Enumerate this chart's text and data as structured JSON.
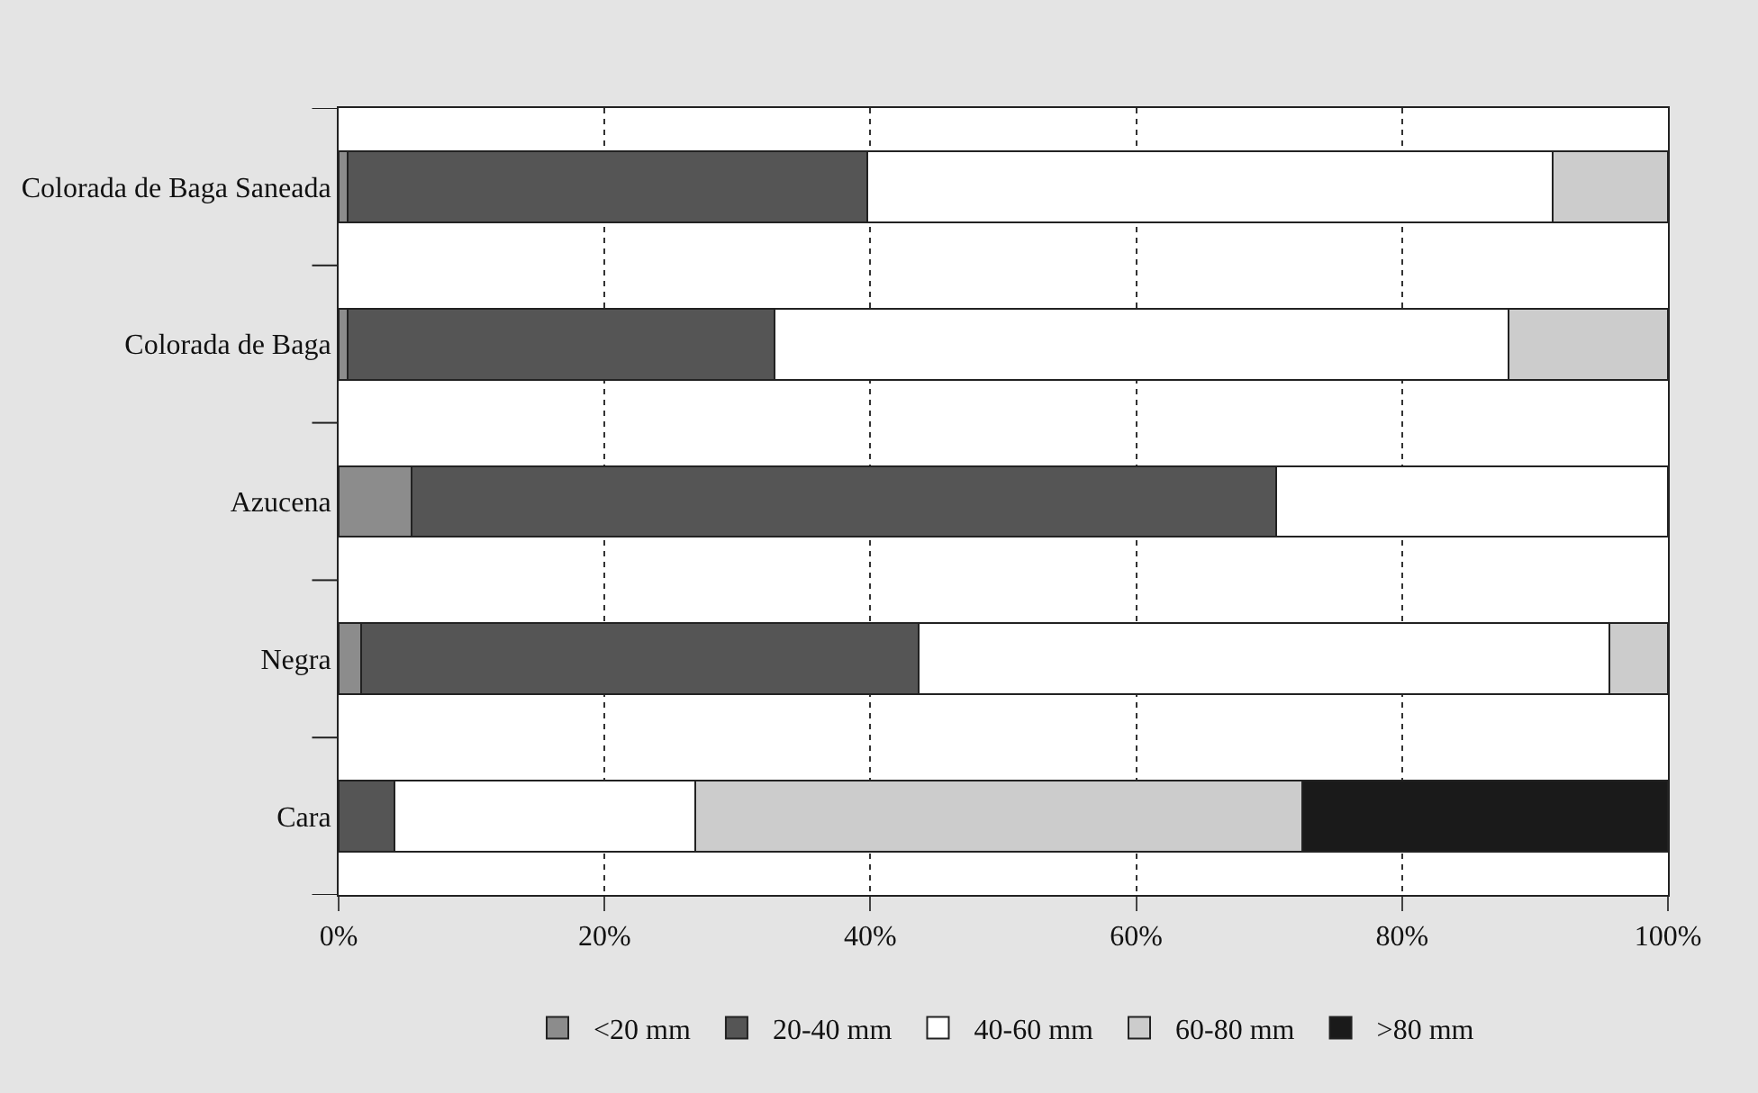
{
  "chart_data": {
    "type": "bar",
    "orientation": "horizontal",
    "stacked": true,
    "categories": [
      "Colorada de Baga Saneada",
      "Colorada de Baga",
      "Azucena",
      "Negra",
      "Cara"
    ],
    "series": [
      {
        "name": "<20 mm",
        "color": "#8c8c8c",
        "values": [
          0.7,
          0.7,
          5.5,
          1.7,
          0
        ]
      },
      {
        "name": "20-40 mm",
        "color": "#555555",
        "values": [
          39.1,
          32.1,
          65.0,
          41.9,
          4.2
        ]
      },
      {
        "name": "40-60 mm",
        "color": "#ffffff",
        "values": [
          51.5,
          55.2,
          29.5,
          52.0,
          22.6
        ]
      },
      {
        "name": "60-80 mm",
        "color": "#cccccc",
        "values": [
          8.7,
          12.0,
          0,
          4.4,
          45.7
        ]
      },
      {
        "name": ">80 mm",
        "color": "#1a1a1a",
        "values": [
          0,
          0,
          0,
          0,
          27.5
        ]
      }
    ],
    "xlim": [
      0,
      100
    ],
    "xticks": [
      {
        "value": 0,
        "label": "0%"
      },
      {
        "value": 20,
        "label": "20%"
      },
      {
        "value": 40,
        "label": "40%"
      },
      {
        "value": 60,
        "label": "60%"
      },
      {
        "value": 80,
        "label": "80%"
      },
      {
        "value": 100,
        "label": "100%"
      }
    ],
    "grid": "x",
    "legend": "bottom"
  }
}
